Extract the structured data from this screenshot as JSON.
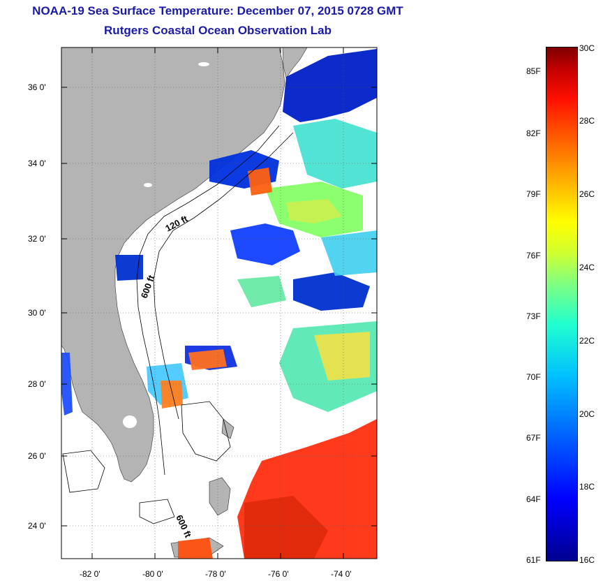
{
  "title_line1": "NOAA-19 Sea Surface Temperature:  December 07, 2015 0728 GMT",
  "title_line2": "Rutgers Coastal Ocean Observation Lab",
  "map": {
    "lat_labels": [
      "36 0'",
      "34 0'",
      "32 0'",
      "30 0'",
      "28 0'",
      "26 0'",
      "24 0'"
    ],
    "lon_labels": [
      "-82 0'",
      "-80 0'",
      "-78 0'",
      "-76 0'",
      "-74 0'"
    ],
    "contour_labels": [
      "120 ft",
      "600 ft",
      "600 ft"
    ]
  },
  "colorbar": {
    "fahrenheit_labels": [
      "85F",
      "82F",
      "79F",
      "76F",
      "73F",
      "70F",
      "67F",
      "64F",
      "61F"
    ],
    "celsius_labels": [
      "30C",
      "28C",
      "26C",
      "24C",
      "22C",
      "20C",
      "18C",
      "16C"
    ],
    "min_c": 16,
    "max_c": 30,
    "colors": [
      "#00008f",
      "#0000ff",
      "#00c0ff",
      "#80ff80",
      "#ffff00",
      "#ff6000",
      "#800000"
    ]
  },
  "colors": {
    "land": "#b4b4b4",
    "cloud": "#ffffff",
    "title": "#1a1aa6"
  }
}
